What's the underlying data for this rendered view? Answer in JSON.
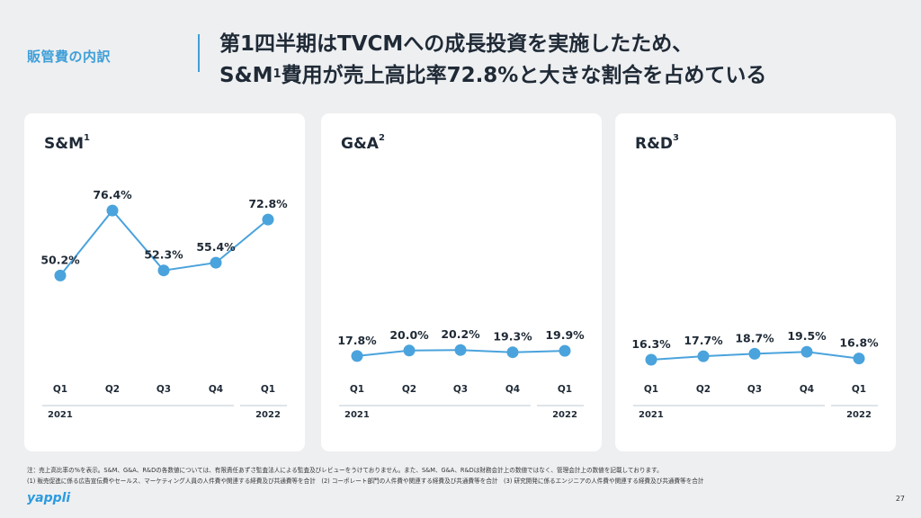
{
  "header": {
    "section_label": "販管費の内訳",
    "headline_line1": "第1四半期はTVCMへの成長投資を実施したため、",
    "headline_line2_a": "S&M",
    "headline_line2_sup": "1",
    "headline_line2_b": "費用が売上高比率72.8%と大きな割合を占めている"
  },
  "chart_data": [
    {
      "type": "line",
      "title": "S&M",
      "title_sup": "1",
      "categories": [
        "Q1",
        "Q2",
        "Q3",
        "Q4",
        "Q1"
      ],
      "values": [
        50.2,
        76.4,
        52.3,
        55.4,
        72.8
      ],
      "value_labels": [
        "50.2%",
        "76.4%",
        "52.3%",
        "55.4%",
        "72.8%"
      ],
      "year_labels": [
        "2021",
        "2022"
      ],
      "ylim": [
        0,
        100
      ],
      "color": "#4aa3dc"
    },
    {
      "type": "line",
      "title": "G&A",
      "title_sup": "2",
      "categories": [
        "Q1",
        "Q2",
        "Q3",
        "Q4",
        "Q1"
      ],
      "values": [
        17.8,
        20.0,
        20.2,
        19.3,
        19.9
      ],
      "value_labels": [
        "17.8%",
        "20.0%",
        "20.2%",
        "19.3%",
        "19.9%"
      ],
      "year_labels": [
        "2021",
        "2022"
      ],
      "ylim": [
        0,
        100
      ],
      "color": "#4aa3dc"
    },
    {
      "type": "line",
      "title": "R&D",
      "title_sup": "3",
      "categories": [
        "Q1",
        "Q2",
        "Q3",
        "Q4",
        "Q1"
      ],
      "values": [
        16.3,
        17.7,
        18.7,
        19.5,
        16.8
      ],
      "value_labels": [
        "16.3%",
        "17.7%",
        "18.7%",
        "19.5%",
        "16.8%"
      ],
      "year_labels": [
        "2021",
        "2022"
      ],
      "ylim": [
        0,
        100
      ],
      "color": "#4aa3dc"
    }
  ],
  "footnotes": {
    "note1": "注：売上高比率の%を表示。S&M、G&A、R&Dの各数値については、有限責任あずさ監査法人による監査及びレビューをうけておりません。また、S&M、G&A、R&Dは財務会計上の数値ではなく、管理会計上の数値を記載しております。",
    "note2": "(1) 販売促進に係る広告宣伝費やセールス、マーケティング人員の人件費や関連する経費及び共通費等を合計　(2) コーポレート部門の人件費や関連する経費及び共通費等を合計　(3) 研究開発に係るエンジニアの人件費や関連する経費及び共通費等を合計"
  },
  "footer": {
    "logo": "yappli",
    "page_number": "27"
  }
}
